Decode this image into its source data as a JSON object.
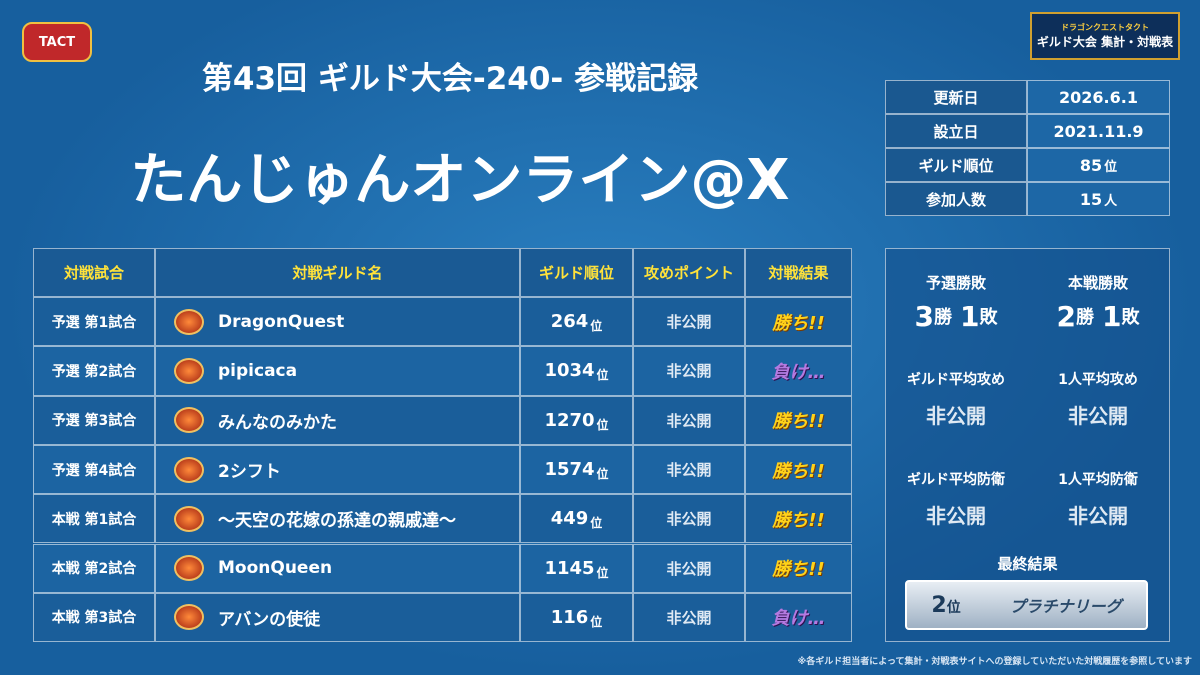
{
  "logo_left": "TACT",
  "logo_right": {
    "line1": "ドラゴンクエストタクト",
    "line2": "ギルド大会 集計・対戦表"
  },
  "header": {
    "title": "第43回  ギルド大会-240-  参戦記録",
    "guild_name": "たんじゅんオンライン@X"
  },
  "info": [
    {
      "label": "更新日",
      "value": "2026.6.1"
    },
    {
      "label": "設立日",
      "value": "2021.11.9"
    },
    {
      "label": "ギルド順位",
      "value": "85",
      "unit": "位"
    },
    {
      "label": "参加人数",
      "value": "15",
      "unit": "人"
    }
  ],
  "table": {
    "columns": [
      "対戦試合",
      "対戦ギルド名",
      "ギルド順位",
      "攻めポイント",
      "対戦結果"
    ],
    "rank_unit": "位",
    "rows": [
      {
        "match": "予選 第1試合",
        "guild": "DragonQuest",
        "rank": "264",
        "points": "非公開",
        "result": "勝ち!!"
      },
      {
        "match": "予選 第2試合",
        "guild": "pipicaca",
        "rank": "1034",
        "points": "非公開",
        "result": "負け…"
      },
      {
        "match": "予選 第3試合",
        "guild": "みんなのみかた",
        "rank": "1270",
        "points": "非公開",
        "result": "勝ち!!"
      },
      {
        "match": "予選 第4試合",
        "guild": "2シフト",
        "rank": "1574",
        "points": "非公開",
        "result": "勝ち!!"
      },
      {
        "match": "本戦 第1試合",
        "guild": "～天空の花嫁の孫達の親戚達～",
        "rank": "449",
        "points": "非公開",
        "result": "勝ち!!"
      },
      {
        "match": "本戦 第2試合",
        "guild": "MoonQueen",
        "rank": "1145",
        "points": "非公開",
        "result": "勝ち!!"
      },
      {
        "match": "本戦 第3試合",
        "guild": "アバンの使徒",
        "rank": "116",
        "points": "非公開",
        "result": "負け…"
      }
    ]
  },
  "summary": {
    "records": [
      {
        "label": "予選勝敗",
        "wins": "3",
        "win_unit": "勝",
        "losses": "1",
        "loss_unit": "敗"
      },
      {
        "label": "本戦勝敗",
        "wins": "2",
        "win_unit": "勝",
        "losses": "1",
        "loss_unit": "敗"
      }
    ],
    "stats": [
      {
        "label": "ギルド平均攻め",
        "value": "非公開"
      },
      {
        "label": "1人平均攻め",
        "value": "非公開"
      },
      {
        "label": "ギルド平均防衛",
        "value": "非公開"
      },
      {
        "label": "1人平均防衛",
        "value": "非公開"
      }
    ],
    "final": {
      "label": "最終結果",
      "place": "2",
      "place_unit": "位",
      "league": "プラチナリーグ"
    }
  },
  "footnote": "※各ギルド担当者によって集計・対戦表サイトへの登録していただいた対戦履歴を参照しています"
}
